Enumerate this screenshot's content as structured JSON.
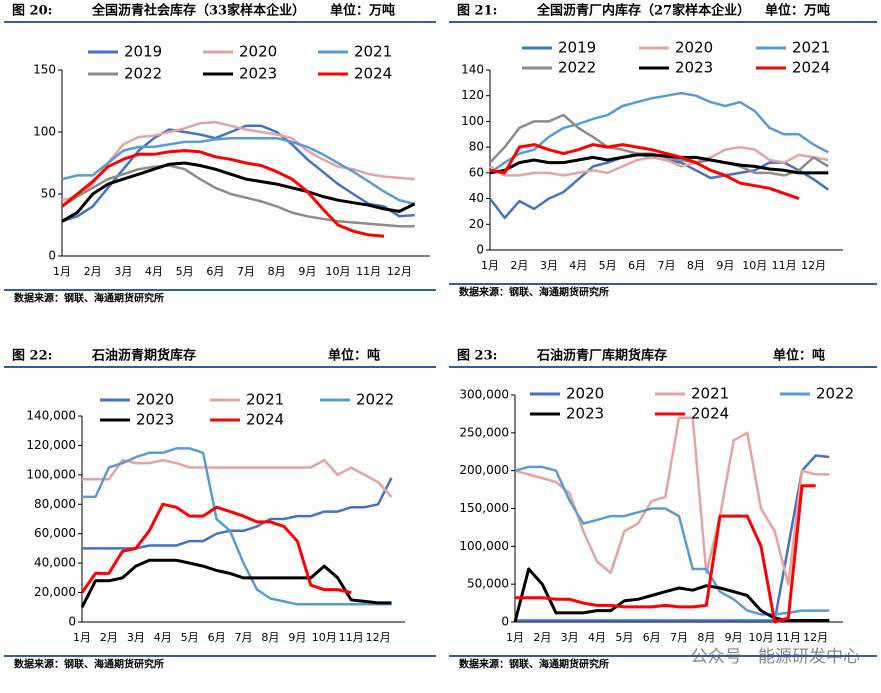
{
  "chart_data": [
    {
      "type": "line",
      "figure": "图 20:",
      "title": "全国沥青社会库存（33家样本企业）",
      "unit": "单位：万吨",
      "source": "数据来源：钢联、海通期货研究所",
      "categories": [
        "1月",
        null,
        "2月",
        null,
        "3月",
        null,
        "4月",
        null,
        "5月",
        null,
        "6月",
        null,
        "7月",
        null,
        "8月",
        null,
        "9月",
        null,
        "10月",
        null,
        "11月",
        null,
        "12月",
        null
      ],
      "ylim": [
        0,
        150
      ],
      "yticks": [
        0,
        50,
        100,
        150
      ],
      "series": [
        {
          "name": "2019",
          "color": "#4472c4",
          "values": [
            28,
            32,
            40,
            55,
            70,
            85,
            95,
            102,
            100,
            98,
            95,
            100,
            105,
            105,
            100,
            90,
            78,
            68,
            58,
            50,
            42,
            40,
            32,
            33
          ]
        },
        {
          "name": "2020",
          "color": "#e6a3a3",
          "values": [
            45,
            48,
            58,
            75,
            90,
            96,
            97,
            100,
            103,
            107,
            108,
            105,
            102,
            100,
            98,
            95,
            85,
            78,
            72,
            70,
            66,
            64,
            63,
            62
          ]
        },
        {
          "name": "2021",
          "color": "#5b9bd5",
          "values": [
            62,
            65,
            65,
            75,
            85,
            88,
            88,
            90,
            92,
            92,
            94,
            95,
            95,
            95,
            95,
            92,
            88,
            82,
            75,
            68,
            60,
            52,
            45,
            42
          ]
        },
        {
          "name": "2022",
          "color": "#8c8c8c",
          "values": [
            40,
            48,
            55,
            62,
            66,
            70,
            72,
            73,
            70,
            62,
            55,
            50,
            47,
            44,
            40,
            35,
            32,
            30,
            28,
            27,
            26,
            25,
            24,
            24
          ]
        },
        {
          "name": "2023",
          "color": "#000000",
          "values": [
            28,
            35,
            50,
            58,
            62,
            66,
            70,
            74,
            75,
            73,
            70,
            66,
            62,
            60,
            58,
            55,
            52,
            48,
            45,
            43,
            41,
            38,
            36,
            42
          ]
        },
        {
          "name": "2024",
          "color": "#ff0000",
          "values": [
            40,
            50,
            60,
            72,
            78,
            82,
            82,
            84,
            85,
            84,
            80,
            78,
            75,
            73,
            68,
            62,
            52,
            38,
            25,
            20,
            17,
            16,
            null,
            null
          ]
        }
      ]
    },
    {
      "type": "line",
      "figure": "图 21:",
      "title": "全国沥青厂内库存（27家样本企业）",
      "unit": "单位：万吨",
      "source": "数据来源：钢联、海通期货研究所",
      "categories": [
        "1月",
        null,
        "2月",
        null,
        "3月",
        null,
        "4月",
        null,
        "5月",
        null,
        "6月",
        null,
        "7月",
        null,
        "8月",
        null,
        "9月",
        null,
        "10月",
        null,
        "11月",
        null,
        "12月",
        null
      ],
      "ylim": [
        0,
        140
      ],
      "yticks": [
        0,
        20,
        40,
        60,
        80,
        100,
        120,
        140
      ],
      "series": [
        {
          "name": "2019",
          "color": "#4472c4",
          "values": [
            40,
            25,
            38,
            32,
            40,
            45,
            55,
            65,
            68,
            72,
            75,
            72,
            70,
            68,
            62,
            56,
            58,
            60,
            62,
            68,
            68,
            62,
            55,
            47
          ]
        },
        {
          "name": "2020",
          "color": "#e6a3a3",
          "values": [
            65,
            58,
            58,
            60,
            60,
            58,
            60,
            62,
            60,
            65,
            70,
            72,
            70,
            65,
            68,
            72,
            78,
            80,
            78,
            70,
            68,
            74,
            72,
            70
          ]
        },
        {
          "name": "2021",
          "color": "#5b9bd5",
          "values": [
            60,
            68,
            75,
            78,
            88,
            95,
            98,
            102,
            105,
            112,
            115,
            118,
            120,
            122,
            120,
            115,
            112,
            115,
            108,
            95,
            90,
            90,
            82,
            76
          ]
        },
        {
          "name": "2022",
          "color": "#8c8c8c",
          "values": [
            68,
            80,
            95,
            100,
            100,
            105,
            95,
            88,
            80,
            78,
            75,
            75,
            72,
            70,
            68,
            70,
            68,
            65,
            60,
            60,
            58,
            62,
            72,
            65
          ]
        },
        {
          "name": "2023",
          "color": "#000000",
          "values": [
            60,
            62,
            68,
            70,
            68,
            68,
            70,
            72,
            70,
            72,
            74,
            74,
            73,
            72,
            72,
            70,
            68,
            66,
            65,
            63,
            62,
            60,
            60,
            60
          ]
        },
        {
          "name": "2024",
          "color": "#ff0000",
          "values": [
            62,
            60,
            80,
            82,
            78,
            75,
            78,
            82,
            80,
            82,
            80,
            78,
            75,
            72,
            68,
            62,
            58,
            52,
            50,
            48,
            44,
            40,
            null,
            null
          ]
        }
      ]
    },
    {
      "type": "line",
      "figure": "图 22:",
      "title": "石油沥青期货库存",
      "unit": "单位：吨",
      "source": "数据来源：钢联、海通期货研究所",
      "categories": [
        "1月",
        null,
        "2月",
        null,
        "3月",
        null,
        "4月",
        null,
        "5月",
        null,
        "6月",
        null,
        "7月",
        null,
        "8月",
        null,
        "9月",
        null,
        "10月",
        null,
        "11月",
        null,
        "12月",
        null
      ],
      "ylim": [
        0,
        140000
      ],
      "yticks": [
        0,
        {
          "value": 20000,
          "label": "20,000"
        },
        {
          "value": 40000,
          "label": "40,000"
        },
        {
          "value": 60000,
          "label": "60,000"
        },
        {
          "value": 80000,
          "label": "80,000"
        },
        {
          "value": 100000,
          "label": "100,000"
        },
        {
          "value": 120000,
          "label": "120,000"
        },
        {
          "value": 140000,
          "label": "140,000"
        }
      ],
      "series": [
        {
          "name": "2020",
          "color": "#4472c4",
          "values": [
            50000,
            50000,
            50000,
            50000,
            50000,
            52000,
            52000,
            52000,
            55000,
            55000,
            60000,
            62000,
            62000,
            65000,
            70000,
            70000,
            72000,
            72000,
            75000,
            75000,
            78000,
            78000,
            80000,
            98000
          ]
        },
        {
          "name": "2021",
          "color": "#e6a3a3",
          "values": [
            97000,
            97000,
            97000,
            110000,
            108000,
            108000,
            110000,
            108000,
            105000,
            105000,
            105000,
            105000,
            105000,
            105000,
            105000,
            105000,
            105000,
            105000,
            110000,
            100000,
            105000,
            100000,
            95000,
            85000
          ]
        },
        {
          "name": "2022",
          "color": "#5b9bd5",
          "values": [
            85000,
            85000,
            105000,
            108000,
            112000,
            115000,
            115000,
            118000,
            118000,
            115000,
            70000,
            62000,
            40000,
            22000,
            16000,
            14000,
            12000,
            12000,
            12000,
            12000,
            12000,
            12000,
            12000,
            12000
          ]
        },
        {
          "name": "2023",
          "color": "#000000",
          "values": [
            10000,
            28000,
            28000,
            30000,
            38000,
            42000,
            42000,
            42000,
            40000,
            38000,
            35000,
            33000,
            30000,
            30000,
            30000,
            30000,
            30000,
            30000,
            38000,
            30000,
            15000,
            14000,
            13000,
            13000
          ]
        },
        {
          "name": "2024",
          "color": "#ff0000",
          "values": [
            20000,
            33000,
            33000,
            48000,
            50000,
            62000,
            80000,
            78000,
            72000,
            72000,
            78000,
            75000,
            72000,
            68000,
            68000,
            65000,
            55000,
            25000,
            22000,
            22000,
            20000,
            null,
            null,
            null
          ]
        }
      ]
    },
    {
      "type": "line",
      "figure": "图 23:",
      "title": "石油沥青厂库期货库存",
      "unit": "单位：吨",
      "source": "数据来源：钢联、海通期货研究所",
      "categories": [
        "1月",
        null,
        "2月",
        null,
        "3月",
        null,
        "4月",
        null,
        "5月",
        null,
        "6月",
        null,
        "7月",
        null,
        "8月",
        null,
        "9月",
        null,
        "10月",
        null,
        "11月",
        null,
        "12月",
        null
      ],
      "ylim": [
        0,
        300000
      ],
      "yticks": [
        0,
        {
          "value": 50000,
          "label": "50,000"
        },
        {
          "value": 100000,
          "label": "100,000"
        },
        {
          "value": 150000,
          "label": "150,000"
        },
        {
          "value": 200000,
          "label": "200,000"
        },
        {
          "value": 250000,
          "label": "250,000"
        },
        {
          "value": 300000,
          "label": "300,000"
        }
      ],
      "series": [
        {
          "name": "2020",
          "color": "#4472c4",
          "values": [
            2000,
            2000,
            2000,
            2000,
            2000,
            2000,
            2000,
            2000,
            2000,
            2000,
            2000,
            2000,
            2000,
            2000,
            2000,
            2000,
            2000,
            2000,
            2000,
            2000,
            100000,
            200000,
            220000,
            218000
          ]
        },
        {
          "name": "2021",
          "color": "#e6a3a3",
          "values": [
            200000,
            195000,
            190000,
            185000,
            170000,
            120000,
            80000,
            65000,
            120000,
            130000,
            160000,
            165000,
            270000,
            270000,
            65000,
            140000,
            240000,
            250000,
            150000,
            120000,
            50000,
            200000,
            195000,
            195000
          ]
        },
        {
          "name": "2022",
          "color": "#5b9bd5",
          "values": [
            200000,
            205000,
            205000,
            200000,
            160000,
            130000,
            135000,
            140000,
            140000,
            145000,
            150000,
            150000,
            140000,
            70000,
            70000,
            40000,
            30000,
            15000,
            10000,
            10000,
            12000,
            15000,
            15000,
            15000
          ]
        },
        {
          "name": "2023",
          "color": "#000000",
          "values": [
            0,
            70000,
            50000,
            12000,
            12000,
            12000,
            15000,
            15000,
            28000,
            30000,
            35000,
            40000,
            45000,
            42000,
            48000,
            45000,
            40000,
            35000,
            15000,
            5000,
            2000,
            2000,
            2000,
            2000
          ]
        },
        {
          "name": "2024",
          "color": "#ff0000",
          "values": [
            32000,
            32000,
            32000,
            30000,
            30000,
            25000,
            22000,
            22000,
            20000,
            20000,
            20000,
            22000,
            20000,
            20000,
            22000,
            140000,
            140000,
            140000,
            100000,
            0,
            5000,
            180000,
            180000,
            null
          ]
        }
      ]
    }
  ],
  "watermark": "公众号 · 能源研发中心"
}
